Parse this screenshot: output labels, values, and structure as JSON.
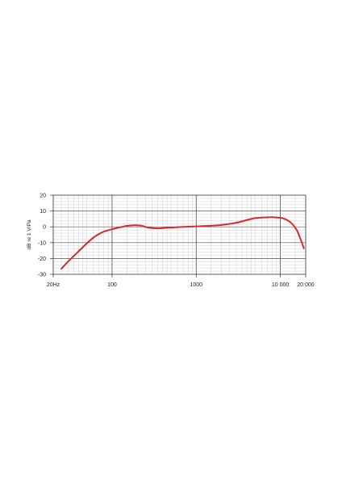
{
  "chart_data": {
    "type": "line",
    "title": "",
    "xlabel": "",
    "ylabel": "dB re 1 V/Pa",
    "xscale": "log",
    "xlim": [
      20,
      20000
    ],
    "ylim": [
      -30,
      20
    ],
    "grid": true,
    "x_tick_labels": [
      {
        "value": 20,
        "label": "20Hz"
      },
      {
        "value": 100,
        "label": "100"
      },
      {
        "value": 1000,
        "label": "1000"
      },
      {
        "value": 10000,
        "label": "10 000"
      },
      {
        "value": 20000,
        "label": "20 000"
      }
    ],
    "y_tick_labels": [
      {
        "value": 20,
        "label": "20"
      },
      {
        "value": 10,
        "label": "10"
      },
      {
        "value": 0,
        "label": "0"
      },
      {
        "value": -10,
        "label": "-10"
      },
      {
        "value": -20,
        "label": "-20"
      },
      {
        "value": -30,
        "label": "-30"
      }
    ],
    "series": [
      {
        "color": "#d42b2b",
        "x": [
          25,
          30,
          40,
          50,
          60,
          70,
          80,
          100,
          120,
          150,
          180,
          220,
          260,
          300,
          350,
          400,
          500,
          700,
          1000,
          1500,
          2000,
          3000,
          4000,
          5000,
          6000,
          7000,
          8000,
          9000,
          10000,
          11000,
          12000,
          13000,
          14000,
          15000,
          16000,
          17000,
          18000,
          19000
        ],
        "y": [
          -26.5,
          -22,
          -15.5,
          -10.5,
          -6.8,
          -4.5,
          -3,
          -1.5,
          -0.5,
          0.6,
          1.0,
          0.8,
          -0.3,
          -0.8,
          -1.0,
          -0.8,
          -0.5,
          0,
          0.3,
          0.7,
          1.2,
          2.6,
          4.3,
          5.5,
          5.9,
          6.0,
          6.1,
          5.9,
          5.7,
          5.2,
          4.3,
          3.1,
          1.5,
          -0.5,
          -3,
          -6.5,
          -10,
          -13.5
        ]
      }
    ]
  }
}
